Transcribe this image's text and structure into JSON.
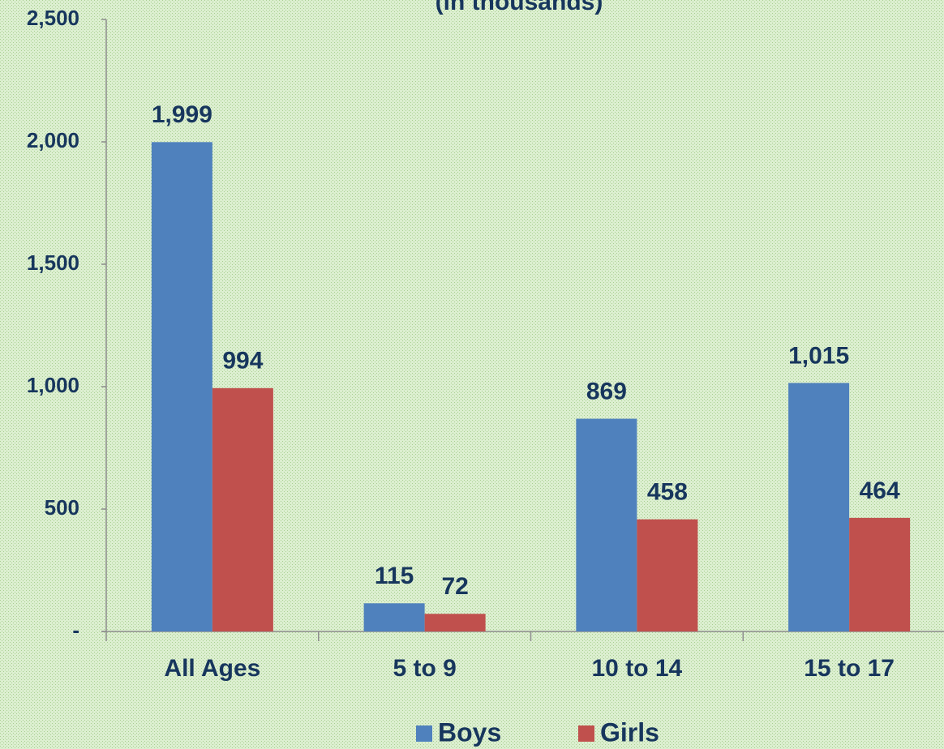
{
  "chart_data": {
    "type": "bar",
    "title": "(in thousands)",
    "categories": [
      "All Ages",
      "5 to 9",
      "10 to 14",
      "15 to 17"
    ],
    "series": [
      {
        "name": "Boys",
        "color": "#4f81bd",
        "values": [
          1999,
          115,
          869,
          1015
        ],
        "value_labels": [
          "1,999",
          "115",
          "869",
          "1,015"
        ]
      },
      {
        "name": "Girls",
        "color": "#c0504d",
        "values": [
          994,
          72,
          458,
          464
        ],
        "value_labels": [
          "994",
          "72",
          "458",
          "464"
        ]
      }
    ],
    "ylim": [
      0,
      2500
    ],
    "yticks": [
      {
        "value": 0,
        "label": "-"
      },
      500,
      {
        "value": 1000,
        "label": "1,000"
      },
      {
        "value": 1500,
        "label": "1,500"
      },
      {
        "value": 2000,
        "label": "2,000"
      },
      {
        "value": 2500,
        "label": "2,500"
      }
    ],
    "legend": "bottom"
  }
}
